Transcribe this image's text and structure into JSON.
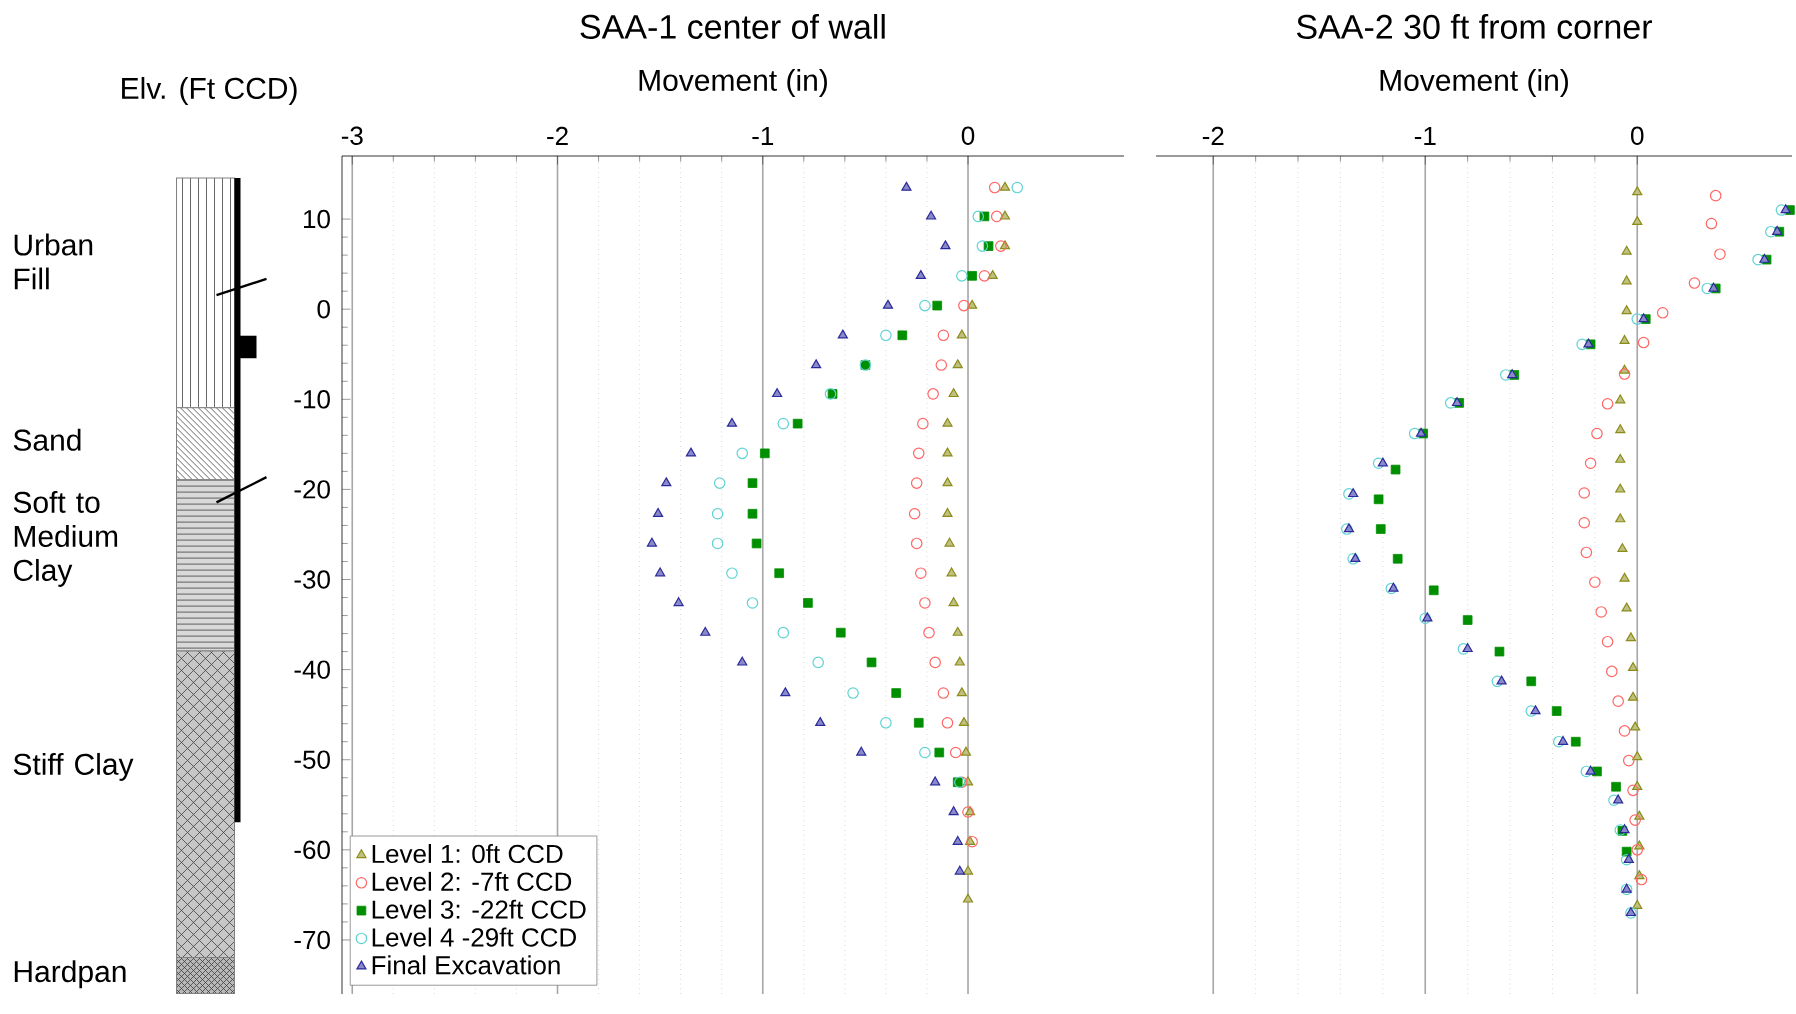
{
  "chart_data": [
    {
      "type": "scatter",
      "title": "SAA-1 center of wall",
      "xlabel": "Movement (in)",
      "ylabel": "Elv. (Ft CCD)",
      "xlim": [
        -3.05,
        0.76
      ],
      "ylim": [
        -76,
        17
      ],
      "xticks": [
        -3,
        -2,
        -1,
        0
      ],
      "yticks": [
        10,
        0,
        -10,
        -20,
        -30,
        -40,
        -50,
        -60,
        -70
      ],
      "grid": "x",
      "legend": "bottom left",
      "annotations": [
        "Urban Fill",
        "Sand",
        "Soft to Medium Clay",
        "Stiff Clay",
        "Hardpan"
      ],
      "series": [
        {
          "name": "Level 1: 0ft CCD",
          "color": "#8c8c1a",
          "marker": "triangle",
          "x": [
            0.18,
            0.18,
            0.18,
            0.12,
            0.02,
            -0.03,
            -0.05,
            -0.07,
            -0.1,
            -0.1,
            -0.1,
            -0.1,
            -0.09,
            -0.08,
            -0.07,
            -0.05,
            -0.04,
            -0.03,
            -0.02,
            -0.01,
            0.0,
            0.01,
            0.01,
            0.0,
            0.0
          ],
          "values": [
            13.5,
            10.3,
            7.0,
            3.7,
            0.4,
            -2.9,
            -6.2,
            -9.4,
            -12.7,
            -16.0,
            -19.3,
            -22.7,
            -26.0,
            -29.3,
            -32.6,
            -35.9,
            -39.2,
            -42.6,
            -45.9,
            -49.2,
            -52.5,
            -55.8,
            -59.1,
            -62.4,
            -65.5
          ]
        },
        {
          "name": "Level 2: -7ft CCD",
          "color": "#ff6666",
          "marker": "circle",
          "x": [
            0.13,
            0.14,
            0.16,
            0.08,
            -0.02,
            -0.12,
            -0.13,
            -0.17,
            -0.22,
            -0.24,
            -0.25,
            -0.26,
            -0.25,
            -0.23,
            -0.21,
            -0.19,
            -0.16,
            -0.12,
            -0.1,
            -0.06,
            -0.03,
            0.0,
            0.02
          ],
          "values": [
            13.5,
            10.3,
            7.0,
            3.7,
            0.4,
            -2.9,
            -6.2,
            -9.4,
            -12.7,
            -16.0,
            -19.3,
            -22.7,
            -26.0,
            -29.3,
            -32.6,
            -35.9,
            -39.2,
            -42.6,
            -45.9,
            -49.2,
            -52.5,
            -55.8,
            -59.1
          ]
        },
        {
          "name": "Level 3: -22ft CCD",
          "color": "#008f00",
          "marker": "square",
          "x": [
            0.08,
            0.1,
            0.02,
            -0.15,
            -0.32,
            -0.5,
            -0.66,
            -0.83,
            -0.99,
            -1.05,
            -1.05,
            -1.03,
            -0.92,
            -0.78,
            -0.62,
            -0.47,
            -0.35,
            -0.24,
            -0.14,
            -0.05
          ],
          "values": [
            10.3,
            7.0,
            3.7,
            0.4,
            -2.9,
            -6.2,
            -9.4,
            -12.7,
            -16.0,
            -19.3,
            -22.7,
            -26.0,
            -29.3,
            -32.6,
            -35.9,
            -39.2,
            -42.6,
            -45.9,
            -49.2,
            -52.5
          ]
        },
        {
          "name": "Level 4 -29ft CCD",
          "color": "#5fd3d3",
          "marker": "circle",
          "x": [
            0.24,
            0.05,
            0.07,
            -0.03,
            -0.21,
            -0.4,
            -0.5,
            -0.67,
            -0.9,
            -1.1,
            -1.21,
            -1.22,
            -1.22,
            -1.15,
            -1.05,
            -0.9,
            -0.73,
            -0.56,
            -0.4,
            -0.21,
            -0.04
          ],
          "values": [
            13.5,
            10.3,
            7.0,
            3.7,
            0.4,
            -2.9,
            -6.2,
            -9.4,
            -12.7,
            -16.0,
            -19.3,
            -22.7,
            -26.0,
            -29.3,
            -32.6,
            -35.9,
            -39.2,
            -42.6,
            -45.9,
            -49.2,
            -52.5
          ]
        },
        {
          "name": "Final Excavation",
          "color": "#2a2a9c",
          "marker": "triangle",
          "x": [
            -0.3,
            -0.18,
            -0.11,
            -0.23,
            -0.39,
            -0.61,
            -0.74,
            -0.93,
            -1.15,
            -1.35,
            -1.47,
            -1.51,
            -1.54,
            -1.5,
            -1.41,
            -1.28,
            -1.1,
            -0.89,
            -0.72,
            -0.52,
            -0.16,
            -0.07,
            -0.05,
            -0.04
          ],
          "values": [
            13.5,
            10.3,
            7.0,
            3.7,
            0.4,
            -2.9,
            -6.2,
            -9.4,
            -12.7,
            -16.0,
            -19.3,
            -22.7,
            -26.0,
            -29.3,
            -32.6,
            -35.9,
            -39.2,
            -42.6,
            -45.9,
            -49.2,
            -52.5,
            -55.8,
            -59.1,
            -62.4
          ]
        }
      ]
    },
    {
      "type": "scatter",
      "title": "SAA-2 30 ft from corner",
      "xlabel": "Movement (in)",
      "xlim": [
        -2.27,
        0.73
      ],
      "ylim": [
        -76,
        17
      ],
      "xticks": [
        -2,
        -1,
        0
      ],
      "grid": "x",
      "tick_labels": "x",
      "series": [
        {
          "color": "#8c8c1a",
          "marker": "triangle",
          "x": [
            0.0,
            0.0,
            -0.05,
            -0.05,
            -0.05,
            -0.06,
            -0.06,
            -0.08,
            -0.08,
            -0.08,
            -0.08,
            -0.08,
            -0.07,
            -0.06,
            -0.05,
            -0.03,
            -0.02,
            -0.02,
            -0.01,
            0.0,
            0.0,
            0.01,
            0.01,
            0.01,
            0.0
          ],
          "values": [
            13.0,
            9.7,
            6.4,
            3.1,
            -0.2,
            -3.5,
            -6.8,
            -10.1,
            -13.4,
            -16.7,
            -20.0,
            -23.3,
            -26.6,
            -29.9,
            -33.2,
            -36.5,
            -39.8,
            -43.1,
            -46.4,
            -49.7,
            -53.0,
            -56.3,
            -59.6,
            -62.9,
            -66.2
          ]
        },
        {
          "color": "#ff6666",
          "marker": "circle",
          "x": [
            0.37,
            0.35,
            0.39,
            0.27,
            0.12,
            0.03,
            -0.06,
            -0.14,
            -0.19,
            -0.22,
            -0.25,
            -0.25,
            -0.24,
            -0.2,
            -0.17,
            -0.14,
            -0.12,
            -0.09,
            -0.06,
            -0.04,
            -0.02,
            -0.01,
            0.0,
            0.02
          ],
          "values": [
            12.6,
            9.5,
            6.1,
            2.9,
            -0.4,
            -3.7,
            -7.2,
            -10.5,
            -13.8,
            -17.1,
            -20.4,
            -23.7,
            -27.0,
            -30.3,
            -33.6,
            -36.9,
            -40.2,
            -43.5,
            -46.8,
            -50.1,
            -53.4,
            -56.7,
            -60.0,
            -63.3
          ]
        },
        {
          "color": "#008f00",
          "marker": "square",
          "x": [
            0.72,
            0.67,
            0.61,
            0.37,
            0.04,
            -0.22,
            -0.58,
            -0.84,
            -1.01,
            -1.14,
            -1.22,
            -1.21,
            -1.13,
            -0.96,
            -0.8,
            -0.65,
            -0.5,
            -0.38,
            -0.29,
            -0.19,
            -0.1,
            -0.07,
            -0.05
          ],
          "values": [
            11.0,
            8.6,
            5.5,
            2.3,
            -1.1,
            -3.9,
            -7.3,
            -10.4,
            -13.8,
            -17.8,
            -21.1,
            -24.4,
            -27.7,
            -31.2,
            -34.5,
            -38.0,
            -41.3,
            -44.6,
            -48.0,
            -51.3,
            -53.0,
            -57.9,
            -60.2
          ]
        },
        {
          "color": "#5fd3d3",
          "marker": "circle",
          "x": [
            0.68,
            0.63,
            0.57,
            0.33,
            0.0,
            -0.26,
            -0.62,
            -0.88,
            -1.05,
            -1.22,
            -1.36,
            -1.37,
            -1.34,
            -1.16,
            -1.0,
            -0.82,
            -0.66,
            -0.5,
            -0.37,
            -0.24,
            -0.11,
            -0.08,
            -0.05,
            -0.05,
            -0.03
          ],
          "values": [
            11.0,
            8.6,
            5.5,
            2.3,
            -1.1,
            -3.9,
            -7.3,
            -10.4,
            -13.8,
            -17.1,
            -20.5,
            -24.4,
            -27.7,
            -31.0,
            -34.3,
            -37.7,
            -41.3,
            -44.6,
            -48.0,
            -51.3,
            -54.5,
            -57.8,
            -61.1,
            -64.4,
            -67.0
          ]
        },
        {
          "color": "#2a2a9c",
          "marker": "triangle",
          "x": [
            0.7,
            0.66,
            0.6,
            0.36,
            0.03,
            -0.23,
            -0.59,
            -0.85,
            -1.02,
            -1.2,
            -1.34,
            -1.36,
            -1.33,
            -1.15,
            -0.99,
            -0.8,
            -0.64,
            -0.48,
            -0.35,
            -0.22,
            -0.09,
            -0.06,
            -0.04,
            -0.05,
            -0.03
          ],
          "values": [
            11.0,
            8.6,
            5.5,
            2.3,
            -1.1,
            -3.9,
            -7.3,
            -10.4,
            -13.8,
            -17.1,
            -20.5,
            -24.4,
            -27.7,
            -31.0,
            -34.3,
            -37.7,
            -41.3,
            -44.6,
            -48.0,
            -51.3,
            -54.5,
            -57.8,
            -61.1,
            -64.4,
            -67.0
          ]
        }
      ]
    }
  ]
}
